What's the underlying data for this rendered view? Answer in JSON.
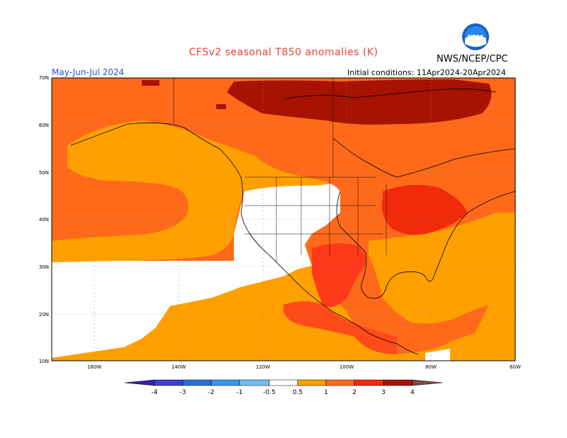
{
  "title": "CFSv2 seasonal T850 anomalies (K)",
  "season": "May-Jun-Jul 2024",
  "initial_conditions": "Initial conditions: 11Apr2024-20Apr2024",
  "agency": "NWS/NCEP/CPC",
  "logo_text": "NOAA",
  "lat_labels": [
    "70N",
    "60N",
    "50N",
    "40N",
    "30N",
    "20N",
    "10N"
  ],
  "lon_labels": [
    "160W",
    "140W",
    "120W",
    "100W",
    "80W",
    "60W"
  ],
  "colorbar": {
    "tick_labels": [
      "-4",
      "-3",
      "-2",
      "-1",
      "-0.5",
      "0.5",
      "1",
      "2",
      "3",
      "4"
    ],
    "colors": [
      "#3a1fb0",
      "#3f3fd4",
      "#2a70dc",
      "#3a96f0",
      "#74bdf5",
      "#ffffff",
      "#ffa000",
      "#ff6a1a",
      "#f02a0a",
      "#a81200",
      "#c8a090",
      "#7a4a40"
    ]
  }
}
